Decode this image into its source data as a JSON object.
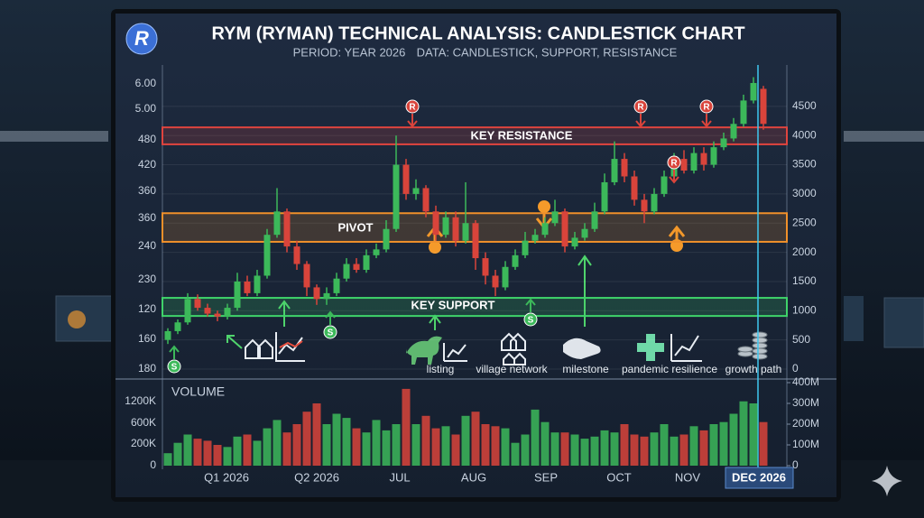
{
  "logo": "R",
  "chart_data": {
    "type": "candlestick",
    "title": "RYM (RYMAN) TECHNICAL ANALYSIS: CANDLESTICK CHART",
    "subtitle_period": "PERIOD: YEAR 2026",
    "subtitle_data": "DATA: CANDLESTICK, SUPPORT, RESISTANCE",
    "colors": {
      "up": "#3cb95a",
      "down": "#d9443b"
    },
    "ohlc": [
      [
        500,
        700,
        430,
        650
      ],
      [
        650,
        850,
        600,
        800
      ],
      [
        800,
        1300,
        760,
        1200
      ],
      [
        1200,
        1280,
        1000,
        1050
      ],
      [
        1050,
        1120,
        900,
        950
      ],
      [
        950,
        1000,
        820,
        900
      ],
      [
        900,
        1120,
        850,
        1050
      ],
      [
        1050,
        1650,
        1000,
        1500
      ],
      [
        1500,
        1600,
        1250,
        1300
      ],
      [
        1300,
        1700,
        1250,
        1600
      ],
      [
        1600,
        2400,
        1550,
        2300
      ],
      [
        2300,
        3100,
        2250,
        2700
      ],
      [
        2700,
        2750,
        2000,
        2100
      ],
      [
        2100,
        2200,
        1700,
        1800
      ],
      [
        1800,
        1850,
        1250,
        1400
      ],
      [
        1400,
        1450,
        1100,
        1200
      ],
      [
        1200,
        1400,
        1100,
        1300
      ],
      [
        1300,
        1650,
        1250,
        1550
      ],
      [
        1550,
        1900,
        1500,
        1800
      ],
      [
        1800,
        1900,
        1650,
        1700
      ],
      [
        1700,
        2050,
        1650,
        1950
      ],
      [
        1950,
        2150,
        1900,
        2050
      ],
      [
        2050,
        2550,
        2000,
        2400
      ],
      [
        2400,
        4000,
        2350,
        3500
      ],
      [
        3500,
        3600,
        2900,
        3000
      ],
      [
        3000,
        3250,
        2900,
        3100
      ],
      [
        3100,
        3150,
        2600,
        2700
      ],
      [
        2700,
        2800,
        2200,
        2300
      ],
      [
        2300,
        2700,
        2250,
        2600
      ],
      [
        2600,
        2700,
        2100,
        2200
      ],
      [
        2200,
        3200,
        2150,
        2500
      ],
      [
        2500,
        2550,
        1700,
        1900
      ],
      [
        1900,
        2000,
        1450,
        1600
      ],
      [
        1600,
        1700,
        1250,
        1400
      ],
      [
        1400,
        1850,
        1350,
        1750
      ],
      [
        1750,
        2050,
        1700,
        1950
      ],
      [
        1950,
        2350,
        1900,
        2200
      ],
      [
        2200,
        2400,
        2150,
        2300
      ],
      [
        2300,
        2600,
        2250,
        2500
      ],
      [
        2500,
        2900,
        2450,
        2700
      ],
      [
        2700,
        2750,
        2000,
        2100
      ],
      [
        2100,
        2350,
        2050,
        2250
      ],
      [
        2250,
        2500,
        2200,
        2400
      ],
      [
        2400,
        2850,
        2350,
        2700
      ],
      [
        2700,
        3350,
        2650,
        3200
      ],
      [
        3200,
        3900,
        3150,
        3600
      ],
      [
        3600,
        3700,
        3200,
        3300
      ],
      [
        3300,
        3400,
        2800,
        2900
      ],
      [
        2900,
        3000,
        2500,
        2700
      ],
      [
        2700,
        3100,
        2650,
        3000
      ],
      [
        3000,
        3400,
        2950,
        3300
      ],
      [
        3300,
        3700,
        3250,
        3600
      ],
      [
        3600,
        3750,
        3350,
        3400
      ],
      [
        3400,
        3800,
        3350,
        3700
      ],
      [
        3700,
        3800,
        3400,
        3500
      ],
      [
        3500,
        3900,
        3450,
        3800
      ],
      [
        3800,
        4050,
        3750,
        3950
      ],
      [
        3950,
        4300,
        3900,
        4200
      ],
      [
        4200,
        4700,
        4150,
        4600
      ],
      [
        4600,
        5000,
        4550,
        4900
      ],
      [
        4800,
        4850,
        4100,
        4200
      ]
    ],
    "ylim": [
      0,
      5000
    ],
    "yticks": [
      0,
      500,
      1000,
      1500,
      2000,
      2500,
      3000,
      3500,
      4000,
      4500
    ],
    "left_axis_labels": [
      "6.00",
      "5.00",
      "480",
      "420",
      "360",
      "360",
      "240",
      "230",
      "120",
      "160",
      "180"
    ],
    "x_labels": [
      "Q1 2026",
      "Q2 2026",
      "JUL",
      "AUG",
      "SEP",
      "OCT",
      "NOV",
      "DEC 2026"
    ],
    "bands": [
      {
        "label": "KEY RESISTANCE",
        "range": [
          3850,
          4140
        ],
        "color": "#e0443e"
      },
      {
        "label": "PIVOT",
        "range": [
          2180,
          2670
        ],
        "color": "#f0902a"
      },
      {
        "label": "KEY SUPPORT",
        "range": [
          910,
          1220
        ],
        "color": "#3fd46a"
      }
    ],
    "markers": [
      "R",
      "R",
      "R",
      "R",
      "S",
      "S",
      "S"
    ],
    "annotations": [
      "listing",
      "village network",
      "milestone",
      "pandemic resilience",
      "growth path"
    ],
    "volume": {
      "label": "VOLUME",
      "ylim": [
        0,
        400
      ],
      "values": [
        60,
        110,
        150,
        130,
        120,
        100,
        90,
        140,
        150,
        120,
        180,
        220,
        160,
        200,
        260,
        300,
        200,
        250,
        230,
        180,
        160,
        220,
        170,
        200,
        370,
        200,
        240,
        180,
        190,
        150,
        240,
        260,
        200,
        190,
        180,
        110,
        150,
        270,
        210,
        160,
        160,
        150,
        130,
        140,
        170,
        160,
        200,
        150,
        140,
        160,
        200,
        140,
        150,
        190,
        170,
        200,
        210,
        250,
        310,
        300,
        210
      ],
      "yticks": [
        0,
        {
          "value": 100,
          "label": "100M"
        },
        {
          "value": 200,
          "label": "200M"
        },
        {
          "value": 300,
          "label": "300M"
        },
        {
          "value": 400,
          "label": "400M"
        }
      ],
      "left_labels": [
        "1200K",
        "600K",
        "200K",
        "0"
      ]
    }
  }
}
